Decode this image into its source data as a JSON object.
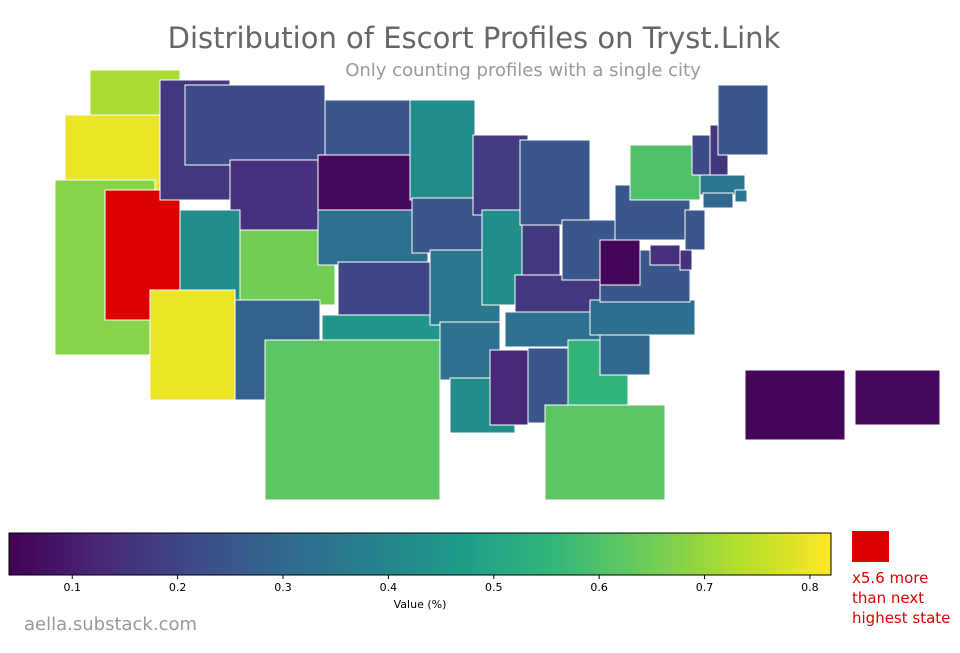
{
  "chart_data": {
    "type": "choropleth",
    "title": "Distribution of Escort Profiles on Tryst.Link",
    "subtitle": "Only counting profiles with a single city",
    "values": [
      0.72,
      0.8,
      0.68,
      4.5,
      0.17,
      0.22,
      0.15,
      0.42,
      0.8,
      0.65,
      0.28,
      0.25,
      0.06,
      0.33,
      0.2,
      0.45,
      0.62,
      0.42,
      0.25,
      0.35,
      0.33,
      0.42,
      0.18,
      0.42,
      0.13,
      0.25,
      0.17,
      0.17,
      0.33,
      0.25,
      0.25,
      0.55,
      0.62,
      0.3,
      0.32,
      0.25,
      0.05,
      0.25,
      0.6,
      0.22,
      0.16,
      0.25,
      0.35,
      0.35,
      0.3,
      0.25,
      0.15,
      0.15,
      0.05,
      0.06
    ],
    "colormap": "viridis",
    "clim": [
      0.04,
      0.82
    ],
    "cticks": [
      0.1,
      0.2,
      0.3,
      0.4,
      0.5,
      0.6,
      0.7,
      0.8
    ],
    "colorbar_label": "Value (%)",
    "outlier_color": "#dd0000",
    "outlier_note": "x5.6 more than next highest state",
    "credit": "aella.substack.com"
  }
}
